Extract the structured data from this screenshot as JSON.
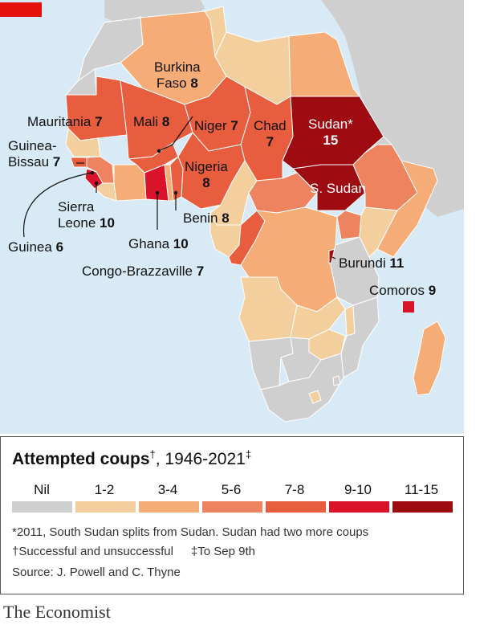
{
  "colors": {
    "nil": "#cfcfcf",
    "c1_2": "#f4cf9e",
    "c3_4": "#f5ac76",
    "c5_6": "#ee8360",
    "c7_8": "#e85d3d",
    "c9_10": "#d9142a",
    "c11_15": "#9e0c12",
    "sea": "#d7eaf5",
    "accent": "#e3120b"
  },
  "map": {
    "labels": {
      "burkina": {
        "name_line1": "Burkina",
        "name_line2": "Faso",
        "count": "8"
      },
      "mauritania": {
        "name": "Mauritania",
        "count": "7"
      },
      "mali": {
        "name": "Mali",
        "count": "8"
      },
      "niger": {
        "name": "Niger",
        "count": "7"
      },
      "chad": {
        "name": "Chad",
        "count": "7"
      },
      "sudan": {
        "name": "Sudan*",
        "count": "15"
      },
      "guinea_bissau": {
        "name_line1": "Guinea-",
        "name_line2": "Bissau",
        "count": "7"
      },
      "nigeria": {
        "name": "Nigeria",
        "count": "8"
      },
      "south_sudan": {
        "name": "S. Sudan"
      },
      "sierra_leone": {
        "name_line1": "Sierra",
        "name_line2": "Leone",
        "count": "10"
      },
      "benin": {
        "name": "Benin",
        "count": "8"
      },
      "ghana": {
        "name": "Ghana",
        "count": "10"
      },
      "guinea": {
        "name": "Guinea",
        "count": "6"
      },
      "congo": {
        "name": "Congo-Brazzaville",
        "count": "7"
      },
      "burundi": {
        "name": "Burundi",
        "count": "11"
      },
      "comoros": {
        "name": "Comoros",
        "count": "9"
      }
    }
  },
  "legend": {
    "title_bold": "Attempted coups",
    "title_mark": "†",
    "title_rest": ", 1946-2021",
    "title_mark2": "‡",
    "categories": [
      "Nil",
      "1-2",
      "3-4",
      "5-6",
      "7-8",
      "9-10",
      "11-15"
    ]
  },
  "notes": {
    "line1": "*2011, South Sudan splits from Sudan. Sudan had two more coups",
    "line2a": "†Successful and unsuccessful",
    "line2b": "‡To Sep 9th",
    "source": "Source: J. Powell and C. Thyne"
  },
  "footer": "The Economist"
}
